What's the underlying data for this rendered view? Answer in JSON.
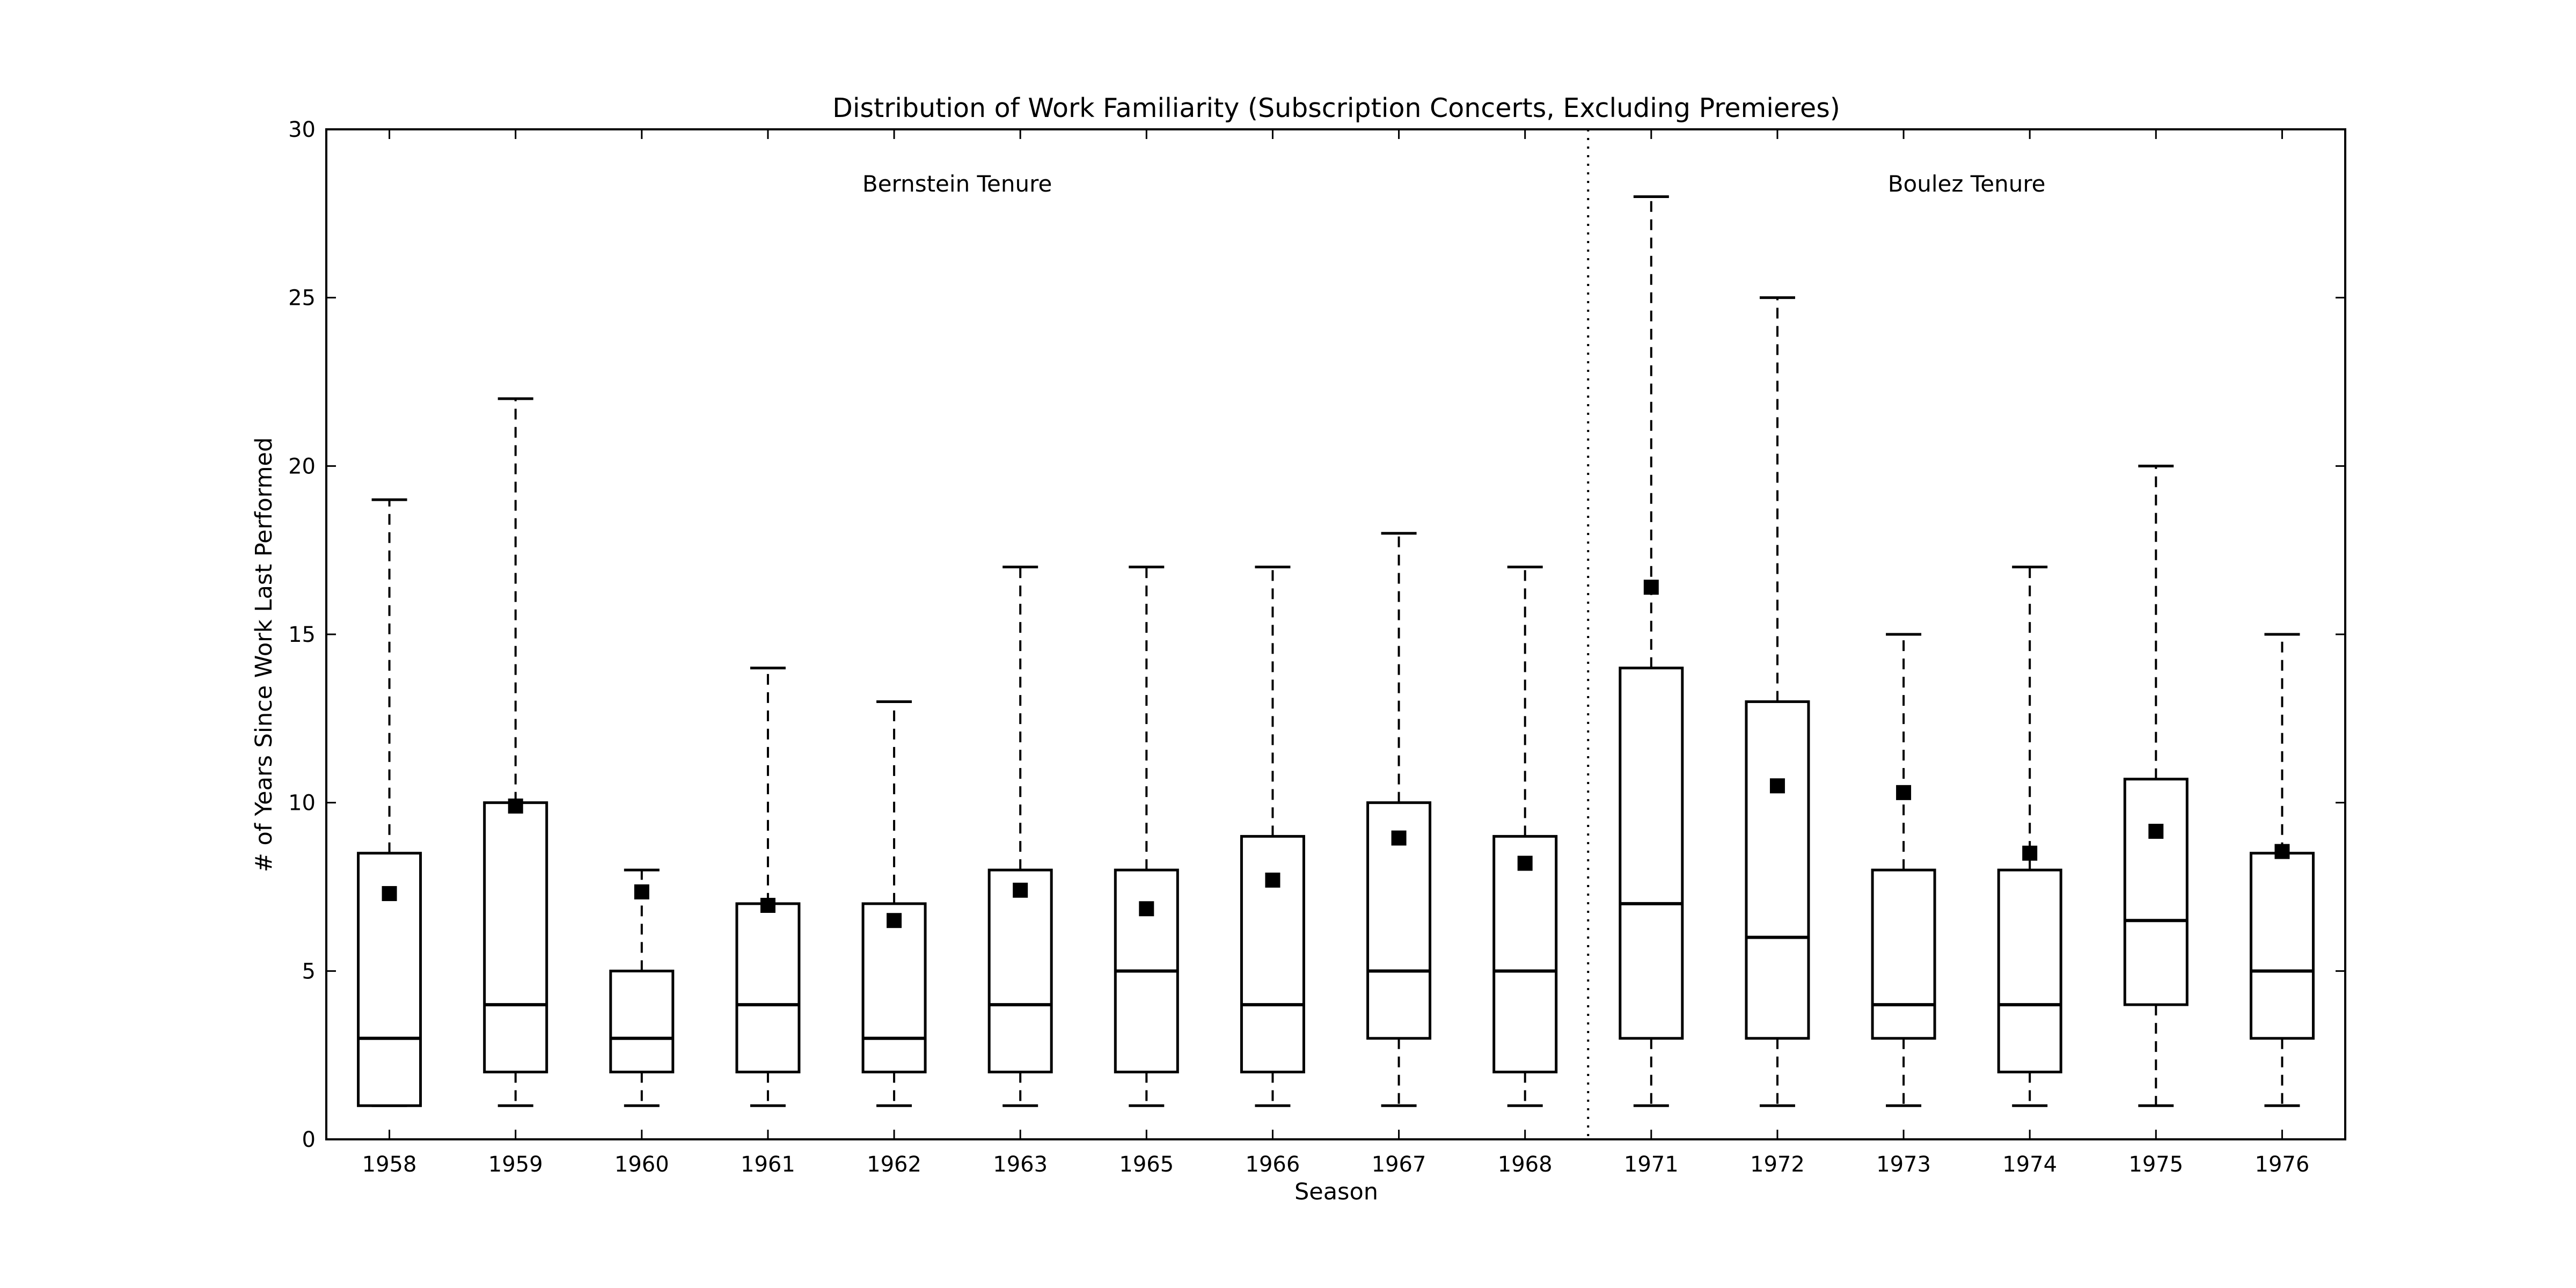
{
  "chart_data": {
    "type": "box",
    "title": "Distribution of Work Familiarity (Subscription Concerts, Excluding Premieres)",
    "xlabel": "Season",
    "ylabel": "# of Years Since Work Last Performed",
    "ylim": [
      0,
      30
    ],
    "yticks": [
      0,
      5,
      10,
      15,
      20,
      25,
      30
    ],
    "grid": false,
    "categories": [
      "1958",
      "1959",
      "1960",
      "1961",
      "1962",
      "1963",
      "1965",
      "1966",
      "1967",
      "1968",
      "1971",
      "1972",
      "1973",
      "1974",
      "1975",
      "1976"
    ],
    "boxes": [
      {
        "season": "1958",
        "whisker_low": 1,
        "q1": 1,
        "median": 3,
        "q3": 8.5,
        "whisker_high": 19,
        "mean": 7.3
      },
      {
        "season": "1959",
        "whisker_low": 1,
        "q1": 2,
        "median": 4,
        "q3": 10,
        "whisker_high": 22,
        "mean": 9.9
      },
      {
        "season": "1960",
        "whisker_low": 1,
        "q1": 2,
        "median": 3,
        "q3": 5,
        "whisker_high": 8,
        "mean": 7.35
      },
      {
        "season": "1961",
        "whisker_low": 1,
        "q1": 2,
        "median": 4,
        "q3": 7,
        "whisker_high": 14,
        "mean": 6.95
      },
      {
        "season": "1962",
        "whisker_low": 1,
        "q1": 2,
        "median": 3,
        "q3": 7,
        "whisker_high": 13,
        "mean": 6.5
      },
      {
        "season": "1963",
        "whisker_low": 1,
        "q1": 2,
        "median": 4,
        "q3": 8,
        "whisker_high": 17,
        "mean": 7.4
      },
      {
        "season": "1965",
        "whisker_low": 1,
        "q1": 2,
        "median": 5,
        "q3": 8,
        "whisker_high": 17,
        "mean": 6.85
      },
      {
        "season": "1966",
        "whisker_low": 1,
        "q1": 2,
        "median": 4,
        "q3": 9,
        "whisker_high": 17,
        "mean": 7.7
      },
      {
        "season": "1967",
        "whisker_low": 1,
        "q1": 3,
        "median": 5,
        "q3": 10,
        "whisker_high": 18,
        "mean": 8.95
      },
      {
        "season": "1968",
        "whisker_low": 1,
        "q1": 2,
        "median": 5,
        "q3": 9,
        "whisker_high": 17,
        "mean": 8.2
      },
      {
        "season": "1971",
        "whisker_low": 1,
        "q1": 3,
        "median": 7,
        "q3": 14,
        "whisker_high": 28,
        "mean": 16.4
      },
      {
        "season": "1972",
        "whisker_low": 1,
        "q1": 3,
        "median": 6,
        "q3": 13,
        "whisker_high": 25,
        "mean": 10.5
      },
      {
        "season": "1973",
        "whisker_low": 1,
        "q1": 3,
        "median": 4,
        "q3": 8,
        "whisker_high": 15,
        "mean": 10.3
      },
      {
        "season": "1974",
        "whisker_low": 1,
        "q1": 2,
        "median": 4,
        "q3": 8,
        "whisker_high": 17,
        "mean": 8.5
      },
      {
        "season": "1975",
        "whisker_low": 1,
        "q1": 4,
        "median": 6.5,
        "q3": 10.7,
        "whisker_high": 20,
        "mean": 9.15
      },
      {
        "season": "1976",
        "whisker_low": 1,
        "q1": 3,
        "median": 5,
        "q3": 8.5,
        "whisker_high": 15,
        "mean": 8.55
      }
    ],
    "divider_between": [
      "1968",
      "1971"
    ],
    "annotations": [
      {
        "text": "Bernstein Tenure",
        "seasons": [
          "1958",
          "1968"
        ]
      },
      {
        "text": "Boulez Tenure",
        "seasons": [
          "1971",
          "1976"
        ]
      }
    ],
    "colors": {
      "box": "#000000",
      "mean_marker": "#000000",
      "background": "#ffffff"
    }
  }
}
